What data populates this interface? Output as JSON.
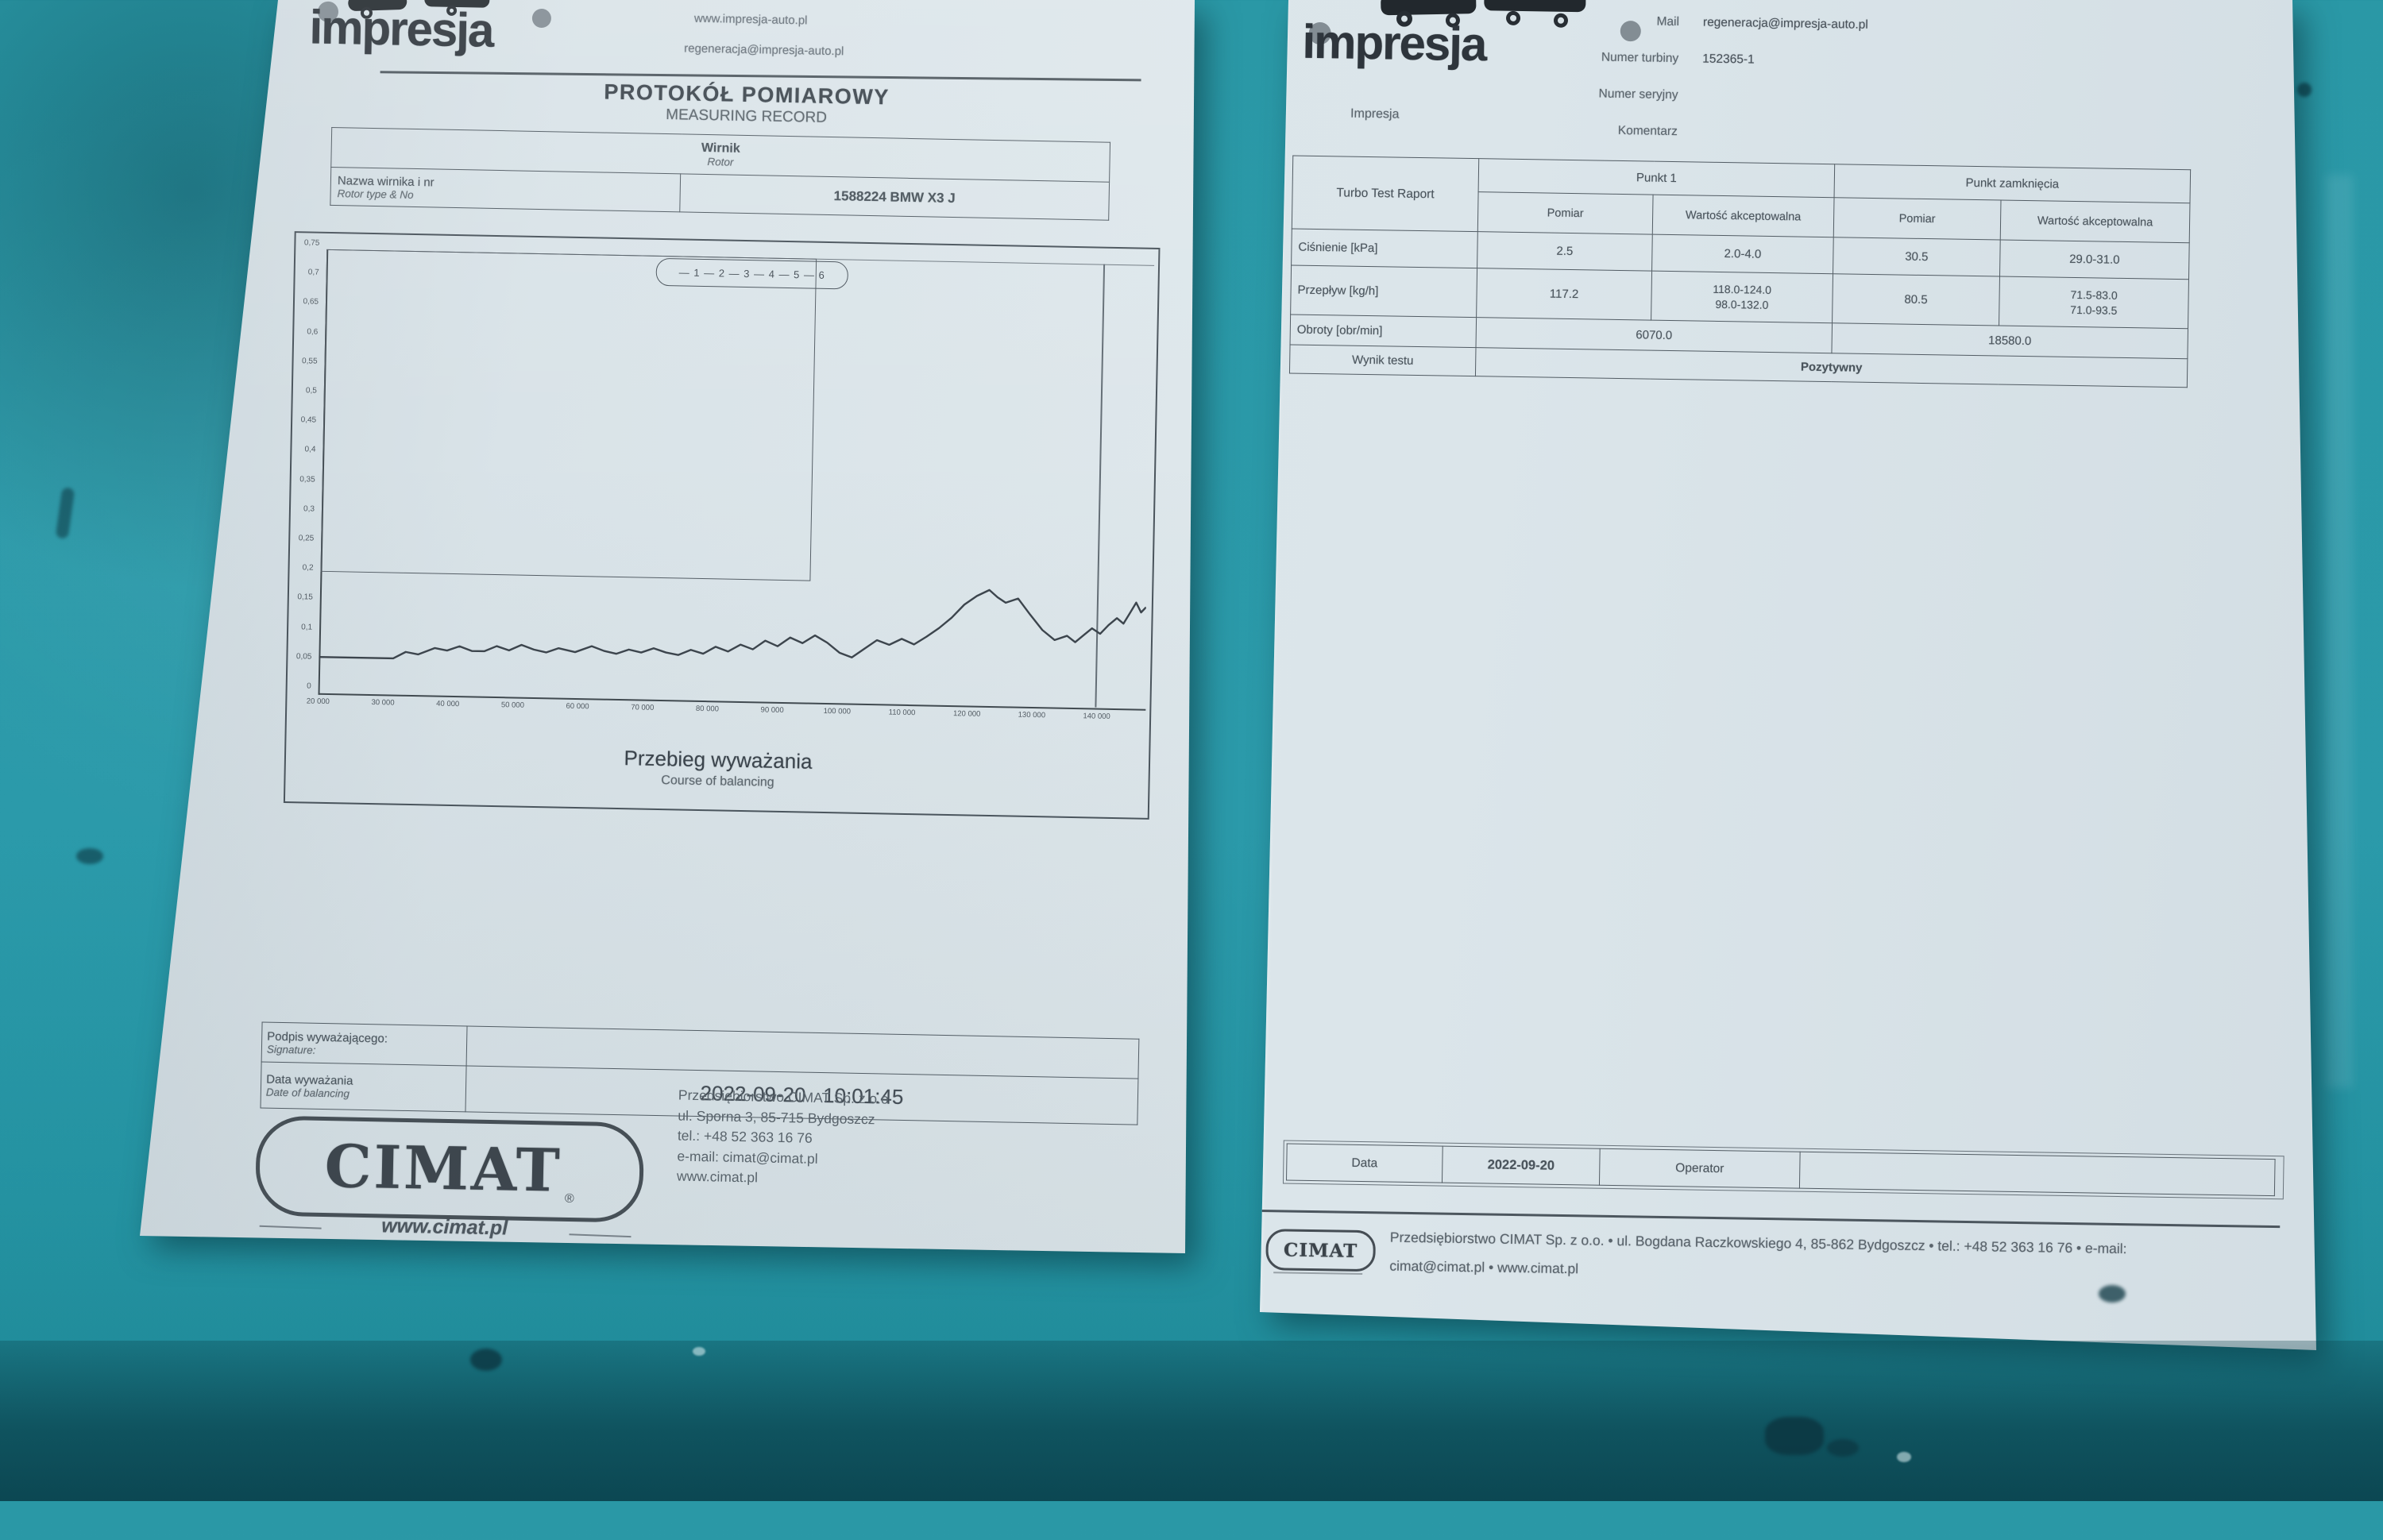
{
  "photo": {
    "table_color": "#2b9aaa",
    "paper_color": "#dde6ea",
    "ink_color": "#49525a"
  },
  "left_doc": {
    "header": {
      "brand": "impresja",
      "website": "www.impresja-auto.pl",
      "email": "regeneracja@impresja-auto.pl"
    },
    "title": "PROTOKÓŁ POMIAROWY",
    "subtitle": "MEASURING RECORD",
    "rotor_table": {
      "header_pl": "Wirnik",
      "header_en": "Rotor",
      "row_label_pl": "Nazwa wirnika i nr",
      "row_label_en": "Rotor type & No",
      "value": "1588224 BMW X3 J"
    },
    "sign_table": {
      "r1_label_pl": "Podpis wyważającego:",
      "r1_label_en": "Signature:",
      "r1_value": "",
      "r2_label_pl": "Data wyważania",
      "r2_label_en": "Date of balancing",
      "date_value": "2022-09-20   10:01:45"
    },
    "cimat": {
      "logo": "CIMAT",
      "reg": "®",
      "url": "www.cimat.pl",
      "address_lines": [
        "Przedsiębiorstwo CIMAT Sp. z o.o",
        "ul. Sporna 3, 85-715 Bydgoszcz",
        "tel.: +48 52 363 16 76",
        "e-mail: cimat@cimat.pl",
        "www.cimat.pl"
      ]
    }
  },
  "right_doc": {
    "brand": "impresja",
    "company_small": "Impresja",
    "fields": [
      {
        "label": "Mail",
        "value": "regeneracja@impresja-auto.pl"
      },
      {
        "label": "Numer turbiny",
        "value": "152365-1"
      },
      {
        "label": "Numer seryjny",
        "value": ""
      },
      {
        "label": "Komentarz",
        "value": ""
      }
    ],
    "table": {
      "title": "Turbo Test Raport",
      "group1": "Punkt 1",
      "group2": "Punkt zamknięcia",
      "sub_measure": "Pomiar",
      "sub_accept": "Wartość akceptowalna",
      "rows": [
        {
          "label": "Ciśnienie [kPa]",
          "m1": "2.5",
          "a1": "2.0-4.0",
          "m2": "30.5",
          "a2": "29.0-31.0"
        },
        {
          "label": "Przepływ [kg/h]",
          "m1": "117.2",
          "a1": "118.0-124.0\n98.0-132.0",
          "m2": "80.5",
          "a2": "71.5-83.0\n71.0-93.5"
        }
      ],
      "rpm_label": "Obroty [obr/min]",
      "rpm1": "6070.0",
      "rpm2": "18580.0",
      "result_label": "Wynik testu",
      "result_value": "Pozytywny"
    },
    "bottom_row": {
      "date_label": "Data",
      "date_value": "2022-09-20",
      "operator_label": "Operator",
      "operator_value": ""
    },
    "footer": {
      "logo": "CIMAT",
      "line1": "Przedsiębiorstwo CIMAT Sp. z o.o. • ul. Bogdana Raczkowskiego 4, 85-862 Bydgoszcz • tel.: +48 52 363 16 76 • e-mail:",
      "line2": "cimat@cimat.pl • www.cimat.pl"
    }
  },
  "chart_data": {
    "type": "line",
    "title": "Przebieg wyważania",
    "subtitle": "Course of balancing",
    "legend": [
      "1",
      "2",
      "3",
      "4",
      "5",
      "6"
    ],
    "y_ticks": [
      "0,75",
      "0,7",
      "0,65",
      "0,6",
      "0,55",
      "0,5",
      "0,45",
      "0,4",
      "0,35",
      "0,3",
      "0,25",
      "0,2",
      "0,15",
      "0,1",
      "0,05",
      "0"
    ],
    "x_ticks": [
      "20 000",
      "30 000",
      "40 000",
      "50 000",
      "60 000",
      "70 000",
      "80 000",
      "90 000",
      "100 000",
      "110 000",
      "120 000",
      "130 000",
      "140 000"
    ],
    "ylim": [
      0,
      0.75
    ],
    "grid": false,
    "legend_position": "top-right",
    "points_pct": [
      [
        0,
        8
      ],
      [
        9,
        8
      ],
      [
        10.5,
        9.5
      ],
      [
        12,
        9
      ],
      [
        14,
        10.5
      ],
      [
        15.5,
        10
      ],
      [
        17,
        11
      ],
      [
        18.5,
        10
      ],
      [
        20,
        10
      ],
      [
        21.5,
        11.2
      ],
      [
        23,
        10.3
      ],
      [
        24.5,
        11.6
      ],
      [
        26,
        10.6
      ],
      [
        27.5,
        10
      ],
      [
        29,
        11
      ],
      [
        31,
        10.2
      ],
      [
        33,
        11.6
      ],
      [
        34.5,
        10.6
      ],
      [
        36,
        10
      ],
      [
        37.5,
        11
      ],
      [
        39,
        10.4
      ],
      [
        40.5,
        11.4
      ],
      [
        42,
        10.5
      ],
      [
        43.5,
        10
      ],
      [
        45,
        11.2
      ],
      [
        46.5,
        10.4
      ],
      [
        48,
        12
      ],
      [
        49.5,
        11
      ],
      [
        51,
        12.6
      ],
      [
        52.5,
        11.6
      ],
      [
        54,
        13.6
      ],
      [
        55.5,
        12.4
      ],
      [
        57,
        14.4
      ],
      [
        58.5,
        13.2
      ],
      [
        60,
        15
      ],
      [
        61.5,
        13.4
      ],
      [
        63,
        11.2
      ],
      [
        64.5,
        10.2
      ],
      [
        66,
        12.2
      ],
      [
        67.5,
        14.2
      ],
      [
        69,
        13.2
      ],
      [
        70.5,
        14.6
      ],
      [
        72,
        13.4
      ],
      [
        73.5,
        15.2
      ],
      [
        75,
        17.2
      ],
      [
        76.5,
        19.6
      ],
      [
        78,
        22.6
      ],
      [
        79.5,
        24.6
      ],
      [
        81,
        26
      ],
      [
        82,
        24.4
      ],
      [
        83,
        23.2
      ],
      [
        84.5,
        24.2
      ],
      [
        86,
        20.6
      ],
      [
        87.5,
        17.2
      ],
      [
        89,
        15
      ],
      [
        90.5,
        16
      ],
      [
        91.5,
        14.6
      ],
      [
        92.5,
        16.2
      ],
      [
        93.5,
        17.8
      ],
      [
        94.5,
        16.6
      ],
      [
        95.5,
        18.6
      ],
      [
        96.5,
        20.2
      ],
      [
        97.3,
        19
      ],
      [
        98,
        21.2
      ],
      [
        98.8,
        23.8
      ],
      [
        99.4,
        21.6
      ],
      [
        100,
        22.8
      ]
    ]
  }
}
